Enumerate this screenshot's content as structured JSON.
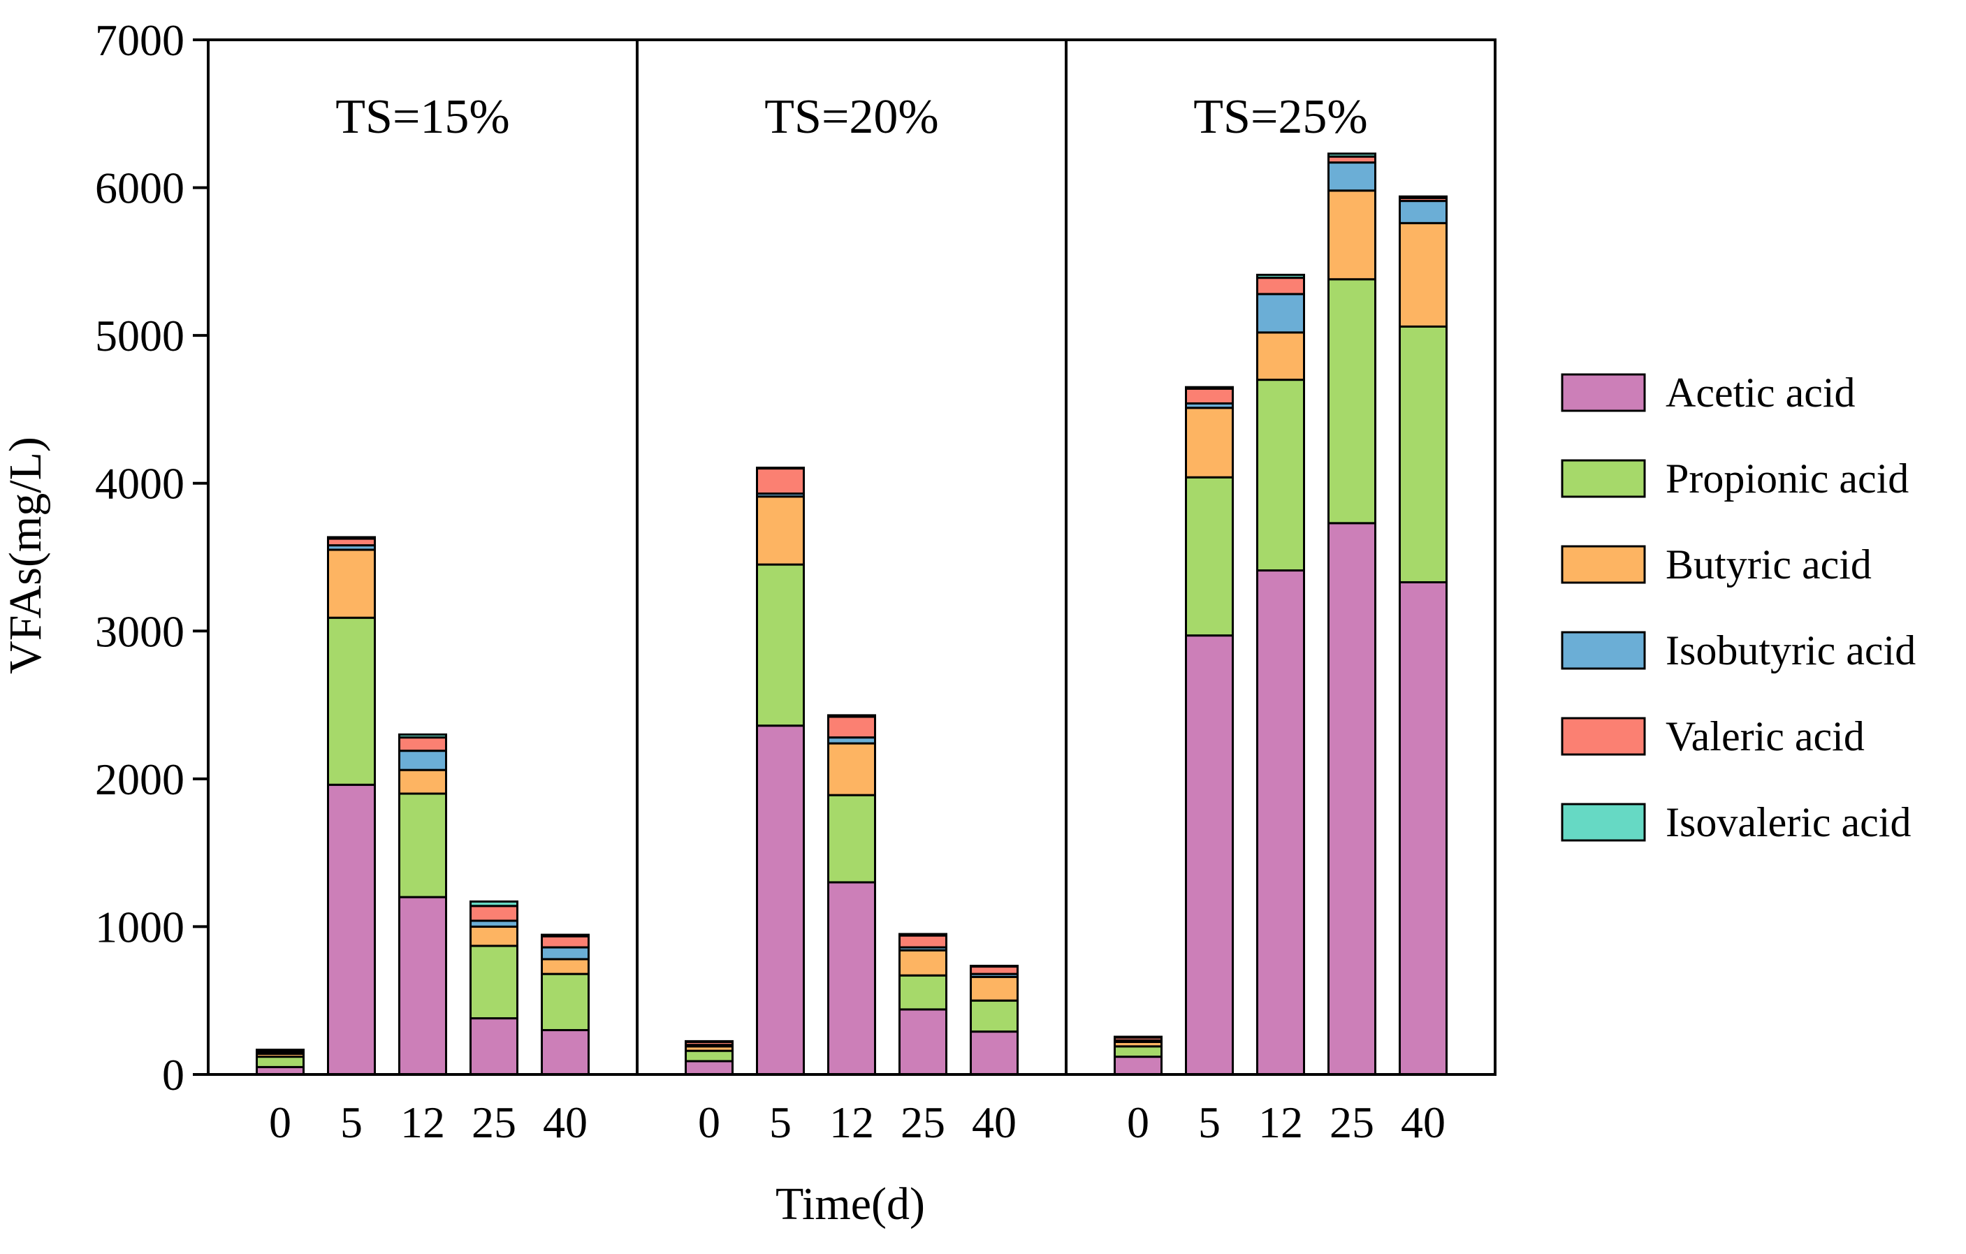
{
  "chart_data": {
    "type": "bar",
    "stacked": true,
    "xlabel": "Time(d)",
    "ylabel": "VFAs(mg/L)",
    "ylim": [
      0,
      7000
    ],
    "yticks": [
      "0",
      "1000",
      "2000",
      "3000",
      "4000",
      "5000",
      "6000",
      "7000"
    ],
    "grid": false,
    "legend_position": "right",
    "series": [
      {
        "name": "Acetic acid",
        "color": "#CC7FB8"
      },
      {
        "name": "Propionic acid",
        "color": "#A6D96A"
      },
      {
        "name": "Butyric acid",
        "color": "#FDB462"
      },
      {
        "name": "Isobutyric acid",
        "color": "#6BAED6"
      },
      {
        "name": "Valeric acid",
        "color": "#FB8072"
      },
      {
        "name": "Isovaleric acid",
        "color": "#66D9C4"
      }
    ],
    "panels": [
      {
        "title": "TS=15%",
        "categories": [
          "0",
          "5",
          "12",
          "25",
          "40"
        ],
        "values": [
          [
            50,
            70,
            20,
            10,
            12,
            5
          ],
          [
            1960,
            1130,
            460,
            30,
            45,
            10
          ],
          [
            1200,
            700,
            160,
            130,
            90,
            20
          ],
          [
            380,
            490,
            130,
            40,
            100,
            30
          ],
          [
            300,
            380,
            100,
            80,
            75,
            10
          ]
        ]
      },
      {
        "title": "TS=20%",
        "categories": [
          "0",
          "5",
          "12",
          "25",
          "40"
        ],
        "values": [
          [
            90,
            70,
            30,
            10,
            20,
            5
          ],
          [
            2360,
            1090,
            460,
            20,
            170,
            5
          ],
          [
            1300,
            590,
            350,
            40,
            140,
            10
          ],
          [
            440,
            230,
            170,
            20,
            80,
            10
          ],
          [
            290,
            210,
            160,
            20,
            50,
            5
          ]
        ]
      },
      {
        "title": "TS=25%",
        "categories": [
          "0",
          "5",
          "12",
          "25",
          "40"
        ],
        "values": [
          [
            120,
            70,
            30,
            10,
            20,
            5
          ],
          [
            2970,
            1070,
            470,
            30,
            100,
            10
          ],
          [
            3410,
            1290,
            320,
            260,
            110,
            20
          ],
          [
            3730,
            1650,
            600,
            190,
            40,
            20
          ],
          [
            3330,
            1730,
            700,
            150,
            20,
            10
          ]
        ]
      }
    ]
  }
}
